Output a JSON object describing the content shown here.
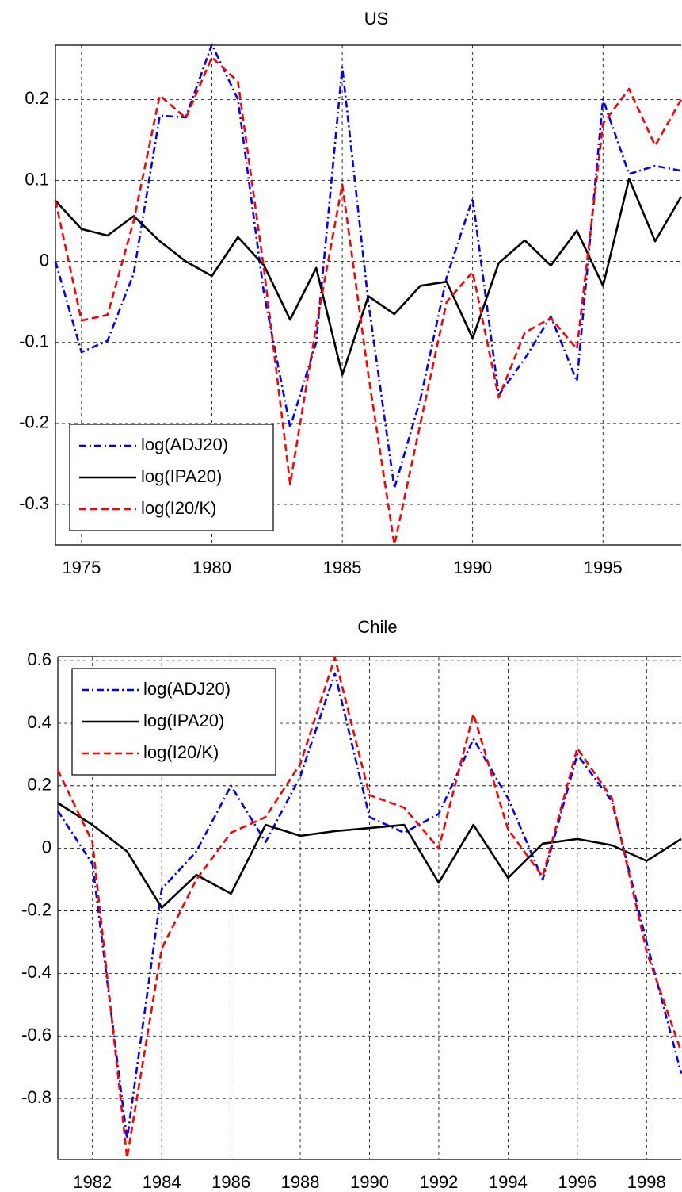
{
  "chart_data": [
    {
      "type": "line",
      "title": "US",
      "x": [
        1974,
        1975,
        1976,
        1977,
        1978,
        1979,
        1980,
        1981,
        1982,
        1983,
        1984,
        1985,
        1986,
        1987,
        1988,
        1989,
        1990,
        1991,
        1992,
        1993,
        1994,
        1995,
        1996,
        1997,
        1998
      ],
      "xlim": [
        1974,
        1998
      ],
      "xticks": [
        1975,
        1980,
        1985,
        1990,
        1995
      ],
      "ylim": [
        -0.35,
        0.267
      ],
      "yticks": [
        -0.3,
        -0.2,
        -0.1,
        0,
        0.1,
        0.2
      ],
      "grid": true,
      "legend": "lower left",
      "series": [
        {
          "name": "log(ADJ20)",
          "color": "#0000ff",
          "linestyle": "dashdot",
          "values": [
            0.0,
            -0.112,
            -0.098,
            -0.015,
            0.18,
            0.178,
            0.268,
            0.2,
            -0.04,
            -0.205,
            -0.1,
            0.24,
            -0.05,
            -0.28,
            -0.17,
            -0.02,
            0.078,
            -0.165,
            -0.12,
            -0.068,
            -0.148,
            0.2,
            0.108,
            0.118,
            0.112
          ]
        },
        {
          "name": "log(IPA20)",
          "color": "#000000",
          "linestyle": "solid",
          "values": [
            0.075,
            0.04,
            0.032,
            0.056,
            0.025,
            0.0,
            -0.018,
            0.03,
            -0.005,
            -0.072,
            -0.008,
            -0.14,
            -0.043,
            -0.065,
            -0.03,
            -0.025,
            -0.095,
            -0.002,
            0.026,
            -0.005,
            0.038,
            -0.03,
            0.102,
            0.025,
            0.08
          ]
        },
        {
          "name": "log(I20/K)",
          "color": "#ff0000",
          "linestyle": "dashed",
          "values": [
            0.075,
            -0.073,
            -0.066,
            0.05,
            0.205,
            0.177,
            0.252,
            0.222,
            -0.01,
            -0.275,
            -0.08,
            0.095,
            -0.14,
            -0.35,
            -0.2,
            -0.05,
            -0.013,
            -0.168,
            -0.088,
            -0.07,
            -0.108,
            0.17,
            0.213,
            0.143,
            0.2
          ]
        }
      ]
    },
    {
      "type": "line",
      "title": "Chile",
      "x": [
        1981,
        1982,
        1983,
        1984,
        1985,
        1986,
        1987,
        1988,
        1989,
        1990,
        1991,
        1992,
        1993,
        1994,
        1995,
        1996,
        1997,
        1998,
        1999
      ],
      "xlim": [
        1981,
        1999
      ],
      "xticks": [
        1982,
        1984,
        1986,
        1988,
        1990,
        1992,
        1994,
        1996,
        1998
      ],
      "ylim": [
        -0.995,
        0.613
      ],
      "yticks": [
        -0.8,
        -0.6,
        -0.4,
        -0.2,
        0,
        0.2,
        0.4,
        0.6
      ],
      "grid": true,
      "legend": "upper left",
      "series": [
        {
          "name": "log(ADJ20)",
          "color": "#0000ff",
          "linestyle": "dashdot",
          "values": [
            0.12,
            -0.05,
            -0.93,
            -0.13,
            -0.01,
            0.2,
            0.02,
            0.23,
            0.56,
            0.1,
            0.05,
            0.11,
            0.35,
            0.16,
            -0.1,
            0.3,
            0.15,
            -0.3,
            -0.72
          ]
        },
        {
          "name": "log(IPA20)",
          "color": "#000000",
          "linestyle": "solid",
          "values": [
            0.145,
            0.075,
            -0.01,
            -0.19,
            -0.085,
            -0.145,
            0.075,
            0.04,
            0.055,
            0.065,
            0.075,
            -0.11,
            0.075,
            -0.095,
            0.015,
            0.03,
            0.01,
            -0.04,
            0.03
          ]
        },
        {
          "name": "log(I20/K)",
          "color": "#ff0000",
          "linestyle": "dashed",
          "values": [
            0.25,
            0.02,
            -0.99,
            -0.32,
            -0.1,
            0.05,
            0.1,
            0.27,
            0.61,
            0.17,
            0.13,
            0.0,
            0.43,
            0.06,
            -0.09,
            0.32,
            0.16,
            -0.33,
            -0.65
          ]
        }
      ]
    }
  ]
}
